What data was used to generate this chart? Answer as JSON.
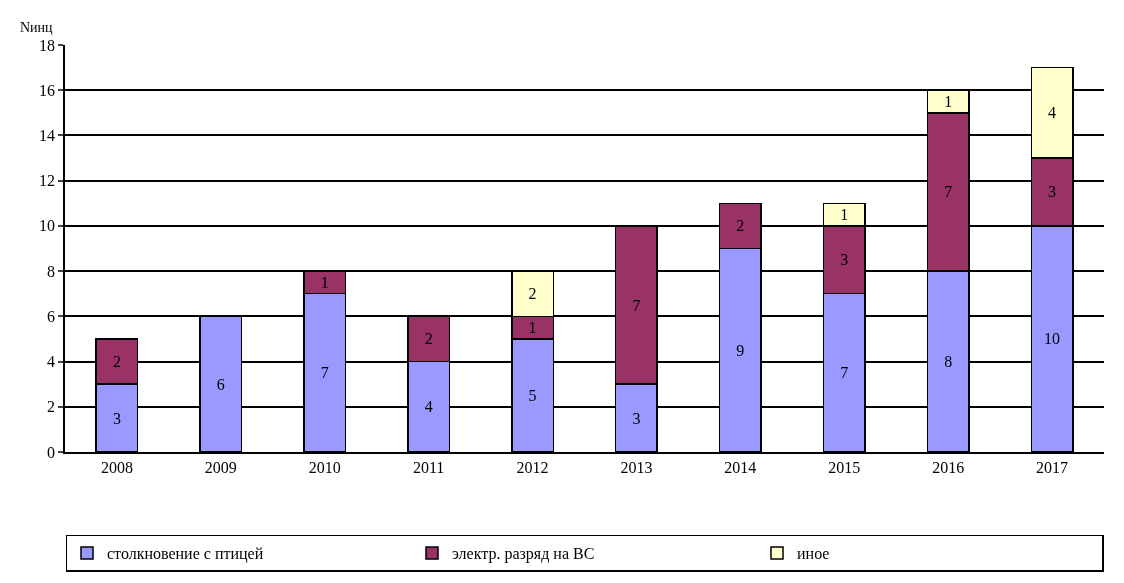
{
  "chart_data": {
    "type": "bar",
    "stacked": true,
    "ylabel": "Nинц",
    "categories": [
      "2008",
      "2009",
      "2010",
      "2011",
      "2012",
      "2013",
      "2014",
      "2015",
      "2016",
      "2017"
    ],
    "series": [
      {
        "name": "столкновение с птицей",
        "color": "#9999ff",
        "values": [
          3,
          6,
          7,
          4,
          5,
          3,
          9,
          7,
          8,
          10
        ]
      },
      {
        "name": "электр. разряд на ВС",
        "color": "#993366",
        "values": [
          2,
          null,
          1,
          2,
          1,
          7,
          2,
          3,
          7,
          3
        ]
      },
      {
        "name": "иное",
        "color": "#ffffcc",
        "values": [
          null,
          null,
          null,
          null,
          2,
          null,
          null,
          1,
          1,
          4
        ]
      }
    ],
    "ylim": [
      0,
      18
    ],
    "yticks": [
      0,
      2,
      4,
      6,
      8,
      10,
      12,
      14,
      16,
      18
    ],
    "grid": "y",
    "legend": "bottom",
    "data_labels": true
  }
}
